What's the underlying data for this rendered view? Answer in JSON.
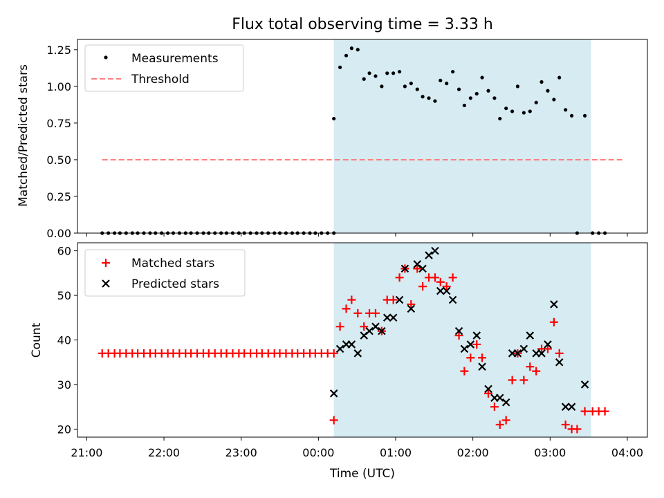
{
  "chart_data": {
    "title": "Flux total observing time = 3.33 h",
    "xlabel": "Time (UTC)",
    "x_unit": "hours after 21:00 UTC",
    "xlim": [
      -0.12,
      7.26
    ],
    "xticks": [
      {
        "label": "21:00",
        "value": 0
      },
      {
        "label": "22:00",
        "value": 1
      },
      {
        "label": "23:00",
        "value": 2
      },
      {
        "label": "00:00",
        "value": 3
      },
      {
        "label": "01:00",
        "value": 4
      },
      {
        "label": "02:00",
        "value": 5
      },
      {
        "label": "03:00",
        "value": 6
      },
      {
        "label": "04:00",
        "value": 7
      }
    ],
    "shaded_interval": {
      "start": 3.2,
      "end": 6.53,
      "color": "#add8e6"
    },
    "panels": [
      {
        "type": "scatter",
        "ylabel": "Matched/Predicted stars",
        "ylim": [
          0,
          1.32
        ],
        "yticks": [
          "0.00",
          "0.25",
          "0.50",
          "0.75",
          "1.00",
          "1.25"
        ],
        "legend": {
          "position": "top-left",
          "entries": [
            "Measurements",
            "Threshold"
          ]
        },
        "threshold": {
          "name": "Threshold",
          "value": 0.5,
          "x_range": [
            0.2,
            6.95
          ],
          "color": "#ff7f7f"
        },
        "measurements": {
          "name": "Measurements",
          "color": "#000000",
          "points": [
            [
              0.2,
              0
            ],
            [
              0.28,
              0
            ],
            [
              0.36,
              0
            ],
            [
              0.43,
              0
            ],
            [
              0.51,
              0
            ],
            [
              0.59,
              0
            ],
            [
              0.66,
              0
            ],
            [
              0.74,
              0
            ],
            [
              0.82,
              0
            ],
            [
              0.89,
              0
            ],
            [
              0.97,
              0
            ],
            [
              1.05,
              0
            ],
            [
              1.12,
              0
            ],
            [
              1.2,
              0
            ],
            [
              1.28,
              0
            ],
            [
              1.35,
              0
            ],
            [
              1.43,
              0
            ],
            [
              1.51,
              0
            ],
            [
              1.58,
              0
            ],
            [
              1.66,
              0
            ],
            [
              1.74,
              0
            ],
            [
              1.81,
              0
            ],
            [
              1.89,
              0
            ],
            [
              1.97,
              0
            ],
            [
              2.04,
              0
            ],
            [
              2.12,
              0
            ],
            [
              2.2,
              0
            ],
            [
              2.27,
              0
            ],
            [
              2.35,
              0
            ],
            [
              2.43,
              0
            ],
            [
              2.5,
              0
            ],
            [
              2.58,
              0
            ],
            [
              2.66,
              0
            ],
            [
              2.73,
              0
            ],
            [
              2.81,
              0
            ],
            [
              2.89,
              0
            ],
            [
              2.96,
              0
            ],
            [
              3.04,
              0
            ],
            [
              3.12,
              0
            ],
            [
              3.2,
              0
            ],
            [
              3.2,
              0.78
            ],
            [
              3.28,
              1.13
            ],
            [
              3.36,
              1.21
            ],
            [
              3.43,
              1.26
            ],
            [
              3.51,
              1.25
            ],
            [
              3.59,
              1.05
            ],
            [
              3.66,
              1.09
            ],
            [
              3.74,
              1.07
            ],
            [
              3.82,
              1.0
            ],
            [
              3.89,
              1.09
            ],
            [
              3.97,
              1.09
            ],
            [
              4.05,
              1.1
            ],
            [
              4.12,
              1.0
            ],
            [
              4.2,
              1.02
            ],
            [
              4.28,
              0.98
            ],
            [
              4.35,
              0.93
            ],
            [
              4.43,
              0.92
            ],
            [
              4.51,
              0.9
            ],
            [
              4.58,
              1.04
            ],
            [
              4.66,
              1.02
            ],
            [
              4.74,
              1.1
            ],
            [
              4.82,
              0.98
            ],
            [
              4.89,
              0.87
            ],
            [
              4.97,
              0.92
            ],
            [
              5.05,
              0.95
            ],
            [
              5.12,
              1.06
            ],
            [
              5.2,
              0.97
            ],
            [
              5.28,
              0.92
            ],
            [
              5.35,
              0.78
            ],
            [
              5.43,
              0.85
            ],
            [
              5.51,
              0.83
            ],
            [
              5.58,
              1.0
            ],
            [
              5.66,
              0.82
            ],
            [
              5.74,
              0.83
            ],
            [
              5.82,
              0.89
            ],
            [
              5.89,
              1.03
            ],
            [
              5.97,
              0.97
            ],
            [
              6.05,
              0.91
            ],
            [
              6.12,
              1.06
            ],
            [
              6.2,
              0.84
            ],
            [
              6.28,
              0.8
            ],
            [
              6.45,
              0.8
            ],
            [
              6.35,
              0
            ],
            [
              6.55,
              0
            ],
            [
              6.63,
              0
            ],
            [
              6.71,
              0
            ]
          ]
        }
      },
      {
        "type": "scatter",
        "ylabel": "Count",
        "ylim": [
          18.2,
          61.8
        ],
        "yticks": [
          "20",
          "30",
          "40",
          "50",
          "60"
        ],
        "legend": {
          "position": "top-left",
          "entries": [
            "Matched stars",
            "Predicted stars"
          ]
        },
        "matched": {
          "name": "Matched stars",
          "color": "#ff0000",
          "points": [
            [
              0.2,
              37
            ],
            [
              0.28,
              37
            ],
            [
              0.36,
              37
            ],
            [
              0.43,
              37
            ],
            [
              0.51,
              37
            ],
            [
              0.59,
              37
            ],
            [
              0.66,
              37
            ],
            [
              0.74,
              37
            ],
            [
              0.82,
              37
            ],
            [
              0.89,
              37
            ],
            [
              0.97,
              37
            ],
            [
              1.05,
              37
            ],
            [
              1.12,
              37
            ],
            [
              1.2,
              37
            ],
            [
              1.28,
              37
            ],
            [
              1.35,
              37
            ],
            [
              1.43,
              37
            ],
            [
              1.51,
              37
            ],
            [
              1.58,
              37
            ],
            [
              1.66,
              37
            ],
            [
              1.74,
              37
            ],
            [
              1.81,
              37
            ],
            [
              1.89,
              37
            ],
            [
              1.97,
              37
            ],
            [
              2.04,
              37
            ],
            [
              2.12,
              37
            ],
            [
              2.2,
              37
            ],
            [
              2.27,
              37
            ],
            [
              2.35,
              37
            ],
            [
              2.43,
              37
            ],
            [
              2.5,
              37
            ],
            [
              2.58,
              37
            ],
            [
              2.66,
              37
            ],
            [
              2.73,
              37
            ],
            [
              2.81,
              37
            ],
            [
              2.89,
              37
            ],
            [
              2.96,
              37
            ],
            [
              3.04,
              37
            ],
            [
              3.12,
              37
            ],
            [
              3.2,
              37
            ],
            [
              3.2,
              22
            ],
            [
              3.28,
              43
            ],
            [
              3.36,
              47
            ],
            [
              3.43,
              49
            ],
            [
              3.51,
              46
            ],
            [
              3.59,
              43
            ],
            [
              3.66,
              46
            ],
            [
              3.74,
              46
            ],
            [
              3.82,
              42
            ],
            [
              3.89,
              49
            ],
            [
              3.97,
              49
            ],
            [
              4.05,
              54
            ],
            [
              4.12,
              56
            ],
            [
              4.2,
              48
            ],
            [
              4.28,
              56
            ],
            [
              4.35,
              52
            ],
            [
              4.43,
              54
            ],
            [
              4.51,
              54
            ],
            [
              4.58,
              53
            ],
            [
              4.66,
              52
            ],
            [
              4.74,
              54
            ],
            [
              4.82,
              41
            ],
            [
              4.89,
              33
            ],
            [
              4.97,
              36
            ],
            [
              5.05,
              39
            ],
            [
              5.12,
              36
            ],
            [
              5.2,
              28
            ],
            [
              5.28,
              25
            ],
            [
              5.35,
              21
            ],
            [
              5.43,
              22
            ],
            [
              5.51,
              31
            ],
            [
              5.58,
              37
            ],
            [
              5.66,
              31
            ],
            [
              5.74,
              34
            ],
            [
              5.82,
              33
            ],
            [
              5.89,
              38
            ],
            [
              5.97,
              38
            ],
            [
              6.05,
              44
            ],
            [
              6.12,
              37
            ],
            [
              6.2,
              21
            ],
            [
              6.28,
              20
            ],
            [
              6.35,
              20
            ],
            [
              6.45,
              24
            ],
            [
              6.55,
              24
            ],
            [
              6.63,
              24
            ],
            [
              6.71,
              24
            ]
          ]
        },
        "predicted": {
          "name": "Predicted stars",
          "color": "#000000",
          "points": [
            [
              3.2,
              28
            ],
            [
              3.28,
              38
            ],
            [
              3.36,
              39
            ],
            [
              3.43,
              39
            ],
            [
              3.51,
              37
            ],
            [
              3.59,
              41
            ],
            [
              3.66,
              42
            ],
            [
              3.74,
              43
            ],
            [
              3.82,
              42
            ],
            [
              3.89,
              45
            ],
            [
              3.97,
              45
            ],
            [
              4.05,
              49
            ],
            [
              4.12,
              56
            ],
            [
              4.2,
              47
            ],
            [
              4.28,
              57
            ],
            [
              4.35,
              56
            ],
            [
              4.43,
              59
            ],
            [
              4.51,
              60
            ],
            [
              4.58,
              51
            ],
            [
              4.66,
              51
            ],
            [
              4.74,
              49
            ],
            [
              4.82,
              42
            ],
            [
              4.89,
              38
            ],
            [
              4.97,
              39
            ],
            [
              5.05,
              41
            ],
            [
              5.12,
              34
            ],
            [
              5.2,
              29
            ],
            [
              5.28,
              27
            ],
            [
              5.35,
              27
            ],
            [
              5.43,
              26
            ],
            [
              5.51,
              37
            ],
            [
              5.58,
              37
            ],
            [
              5.66,
              38
            ],
            [
              5.74,
              41
            ],
            [
              5.82,
              37
            ],
            [
              5.89,
              37
            ],
            [
              5.97,
              39
            ],
            [
              6.05,
              48
            ],
            [
              6.12,
              35
            ],
            [
              6.2,
              25
            ],
            [
              6.28,
              25
            ],
            [
              6.45,
              30
            ]
          ]
        }
      }
    ]
  }
}
